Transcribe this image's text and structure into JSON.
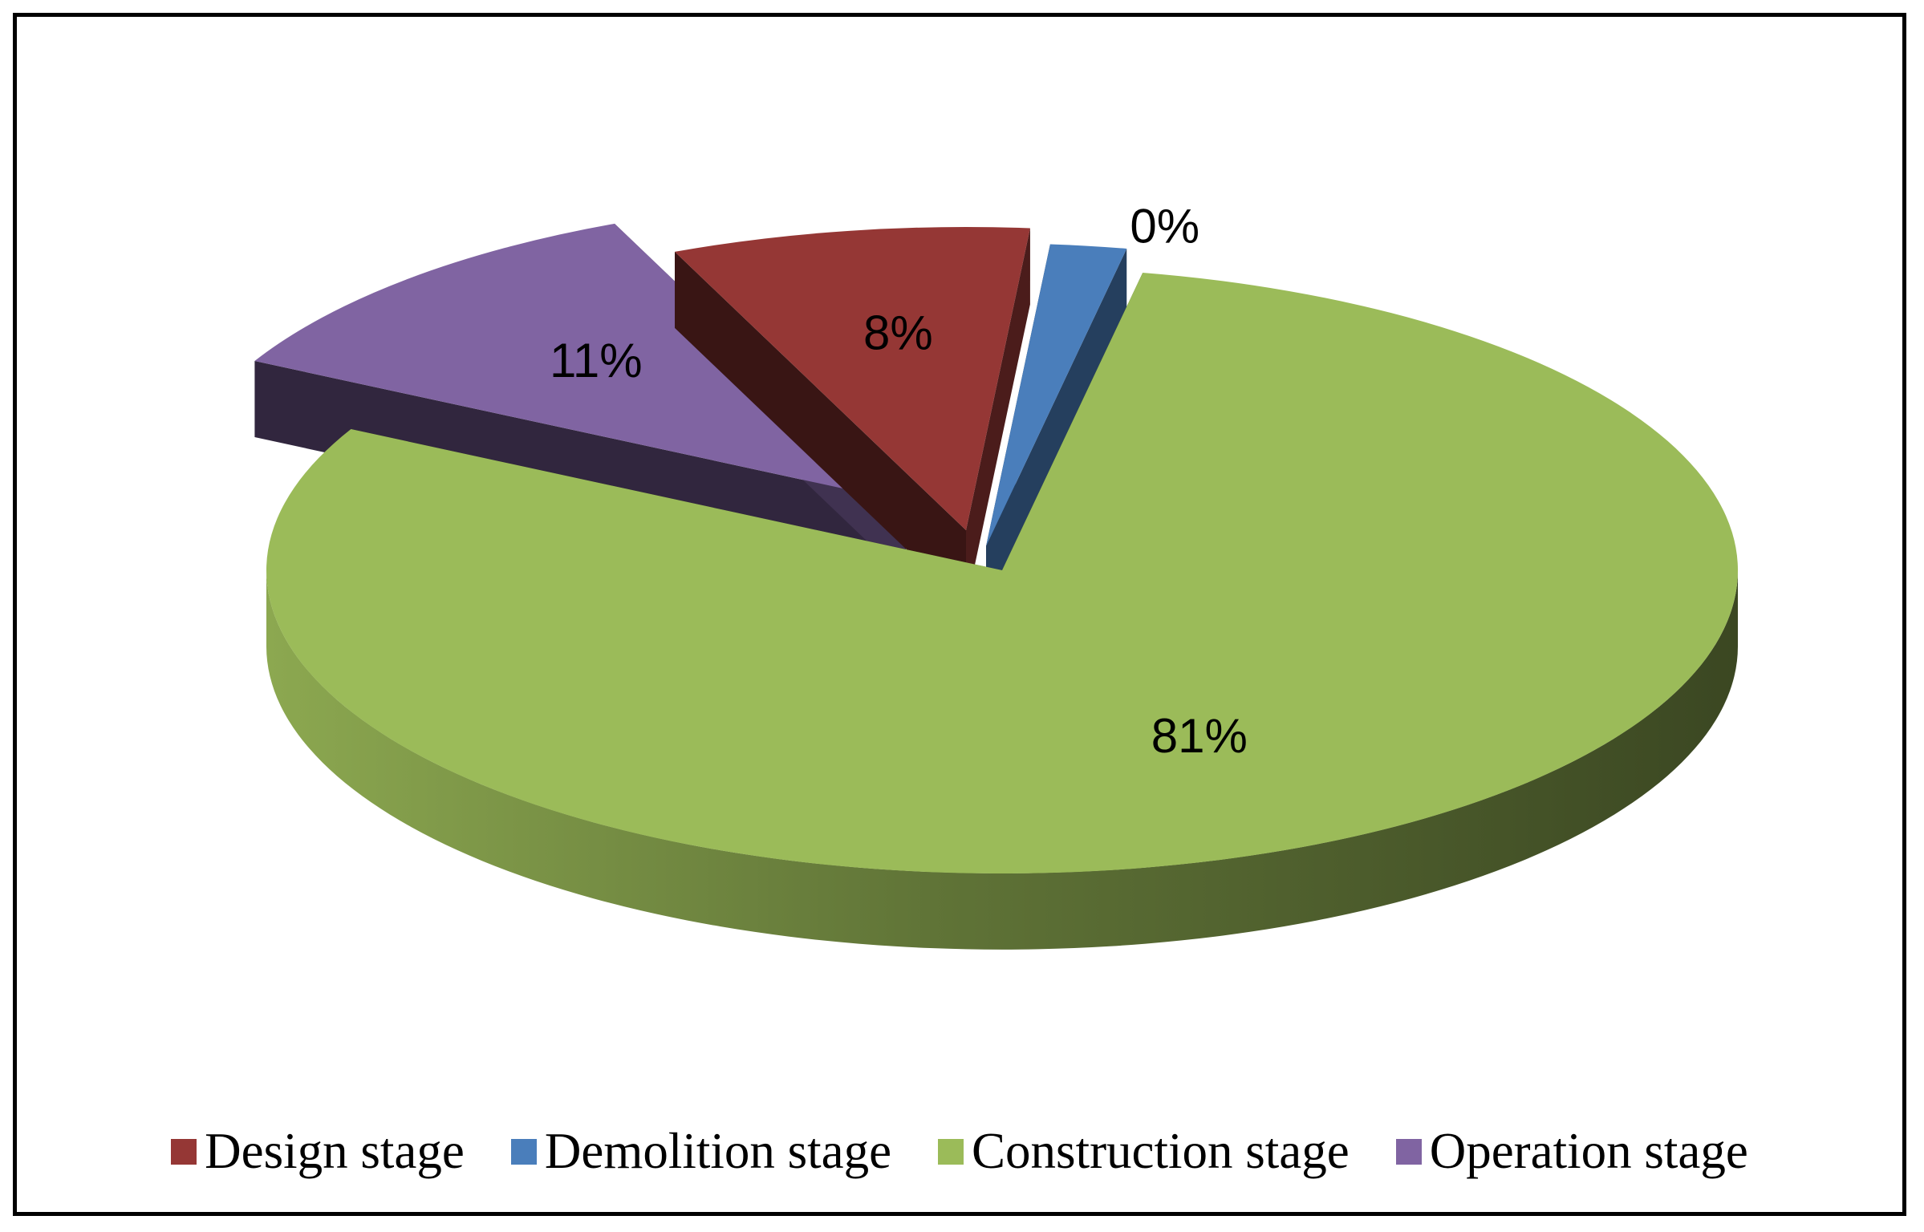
{
  "chart_data": {
    "type": "pie",
    "title": "",
    "categories": [
      "Design stage",
      "Demolition stage",
      "Construction stage",
      "Operation stage"
    ],
    "values": [
      8,
      0,
      81,
      11
    ],
    "labels": [
      "8%",
      "0%",
      "81%",
      "11%"
    ],
    "colors": [
      "#953735",
      "#4a7ebb",
      "#9bbb59",
      "#8064a2"
    ],
    "legend": "bottom",
    "style": "3d exploded"
  }
}
